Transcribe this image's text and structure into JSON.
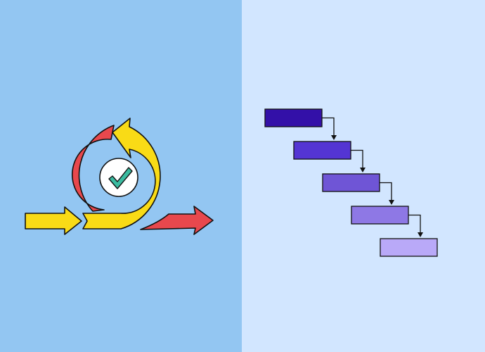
{
  "comparison": {
    "left": {
      "concept": "agile-iterative-loop",
      "background": "#93C6F2",
      "colors": {
        "yellow": "#F9DB16",
        "red": "#E8484D",
        "check": "#3BBBA0",
        "outline": "#111111",
        "badge": "#FFFFFF"
      },
      "icons": [
        "forward-arrow-icon",
        "loop-arrow-icon",
        "check-icon"
      ]
    },
    "right": {
      "concept": "waterfall-sequential-steps",
      "background": "#D2E6FF",
      "step_count": 5,
      "step_colors": [
        "#3310A8",
        "#5435D3",
        "#6F55D6",
        "#8E78E5",
        "#B9A9F8"
      ],
      "connector_color": "#111111"
    }
  }
}
